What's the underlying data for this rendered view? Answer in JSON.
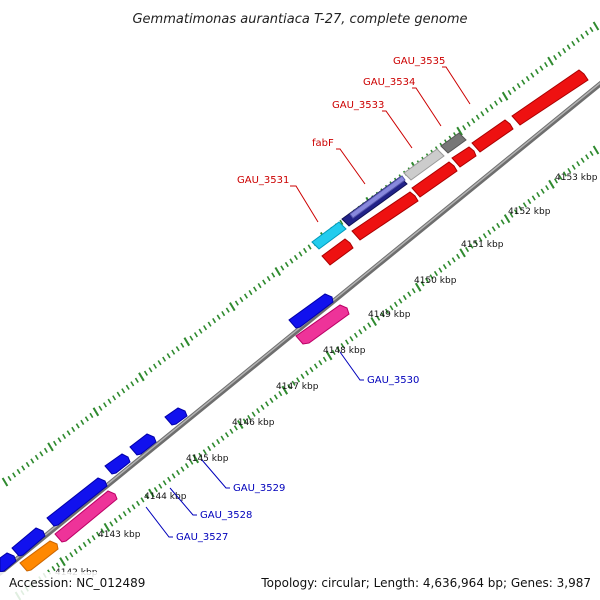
{
  "title": "Gemmatimonas aurantiaca T-27, complete genome",
  "footer": {
    "accession": "Accession: NC_012489",
    "topology": "Topology: circular; Length: 4,636,964 bp; Genes: 3,987"
  },
  "colors": {
    "backbone": "#8c8c8c",
    "tick": "#2f8a2f",
    "label_red": "#cc0000",
    "label_blue": "#0000bb"
  },
  "ticks": [
    {
      "label": "4143 kbp"
    },
    {
      "label": "4144 kbp"
    },
    {
      "label": "4145 kbp"
    },
    {
      "label": "4146 kbp"
    },
    {
      "label": "4147 kbp"
    },
    {
      "label": "4148 kbp"
    },
    {
      "label": "4149 kbp"
    },
    {
      "label": "4150 kbp"
    },
    {
      "label": "4151 kbp"
    },
    {
      "label": "4152 kbp"
    },
    {
      "label": "4153 kbp"
    }
  ],
  "gene_labels": [
    {
      "name": "GAU_3531",
      "color": "red"
    },
    {
      "name": "fabF",
      "color": "red"
    },
    {
      "name": "GAU_3533",
      "color": "red"
    },
    {
      "name": "GAU_3534",
      "color": "red"
    },
    {
      "name": "GAU_3535",
      "color": "red"
    },
    {
      "name": "GAU_3530",
      "color": "blue"
    },
    {
      "name": "GAU_3529",
      "color": "blue"
    },
    {
      "name": "GAU_3528",
      "color": "blue"
    },
    {
      "name": "GAU_3527",
      "color": "blue"
    }
  ]
}
